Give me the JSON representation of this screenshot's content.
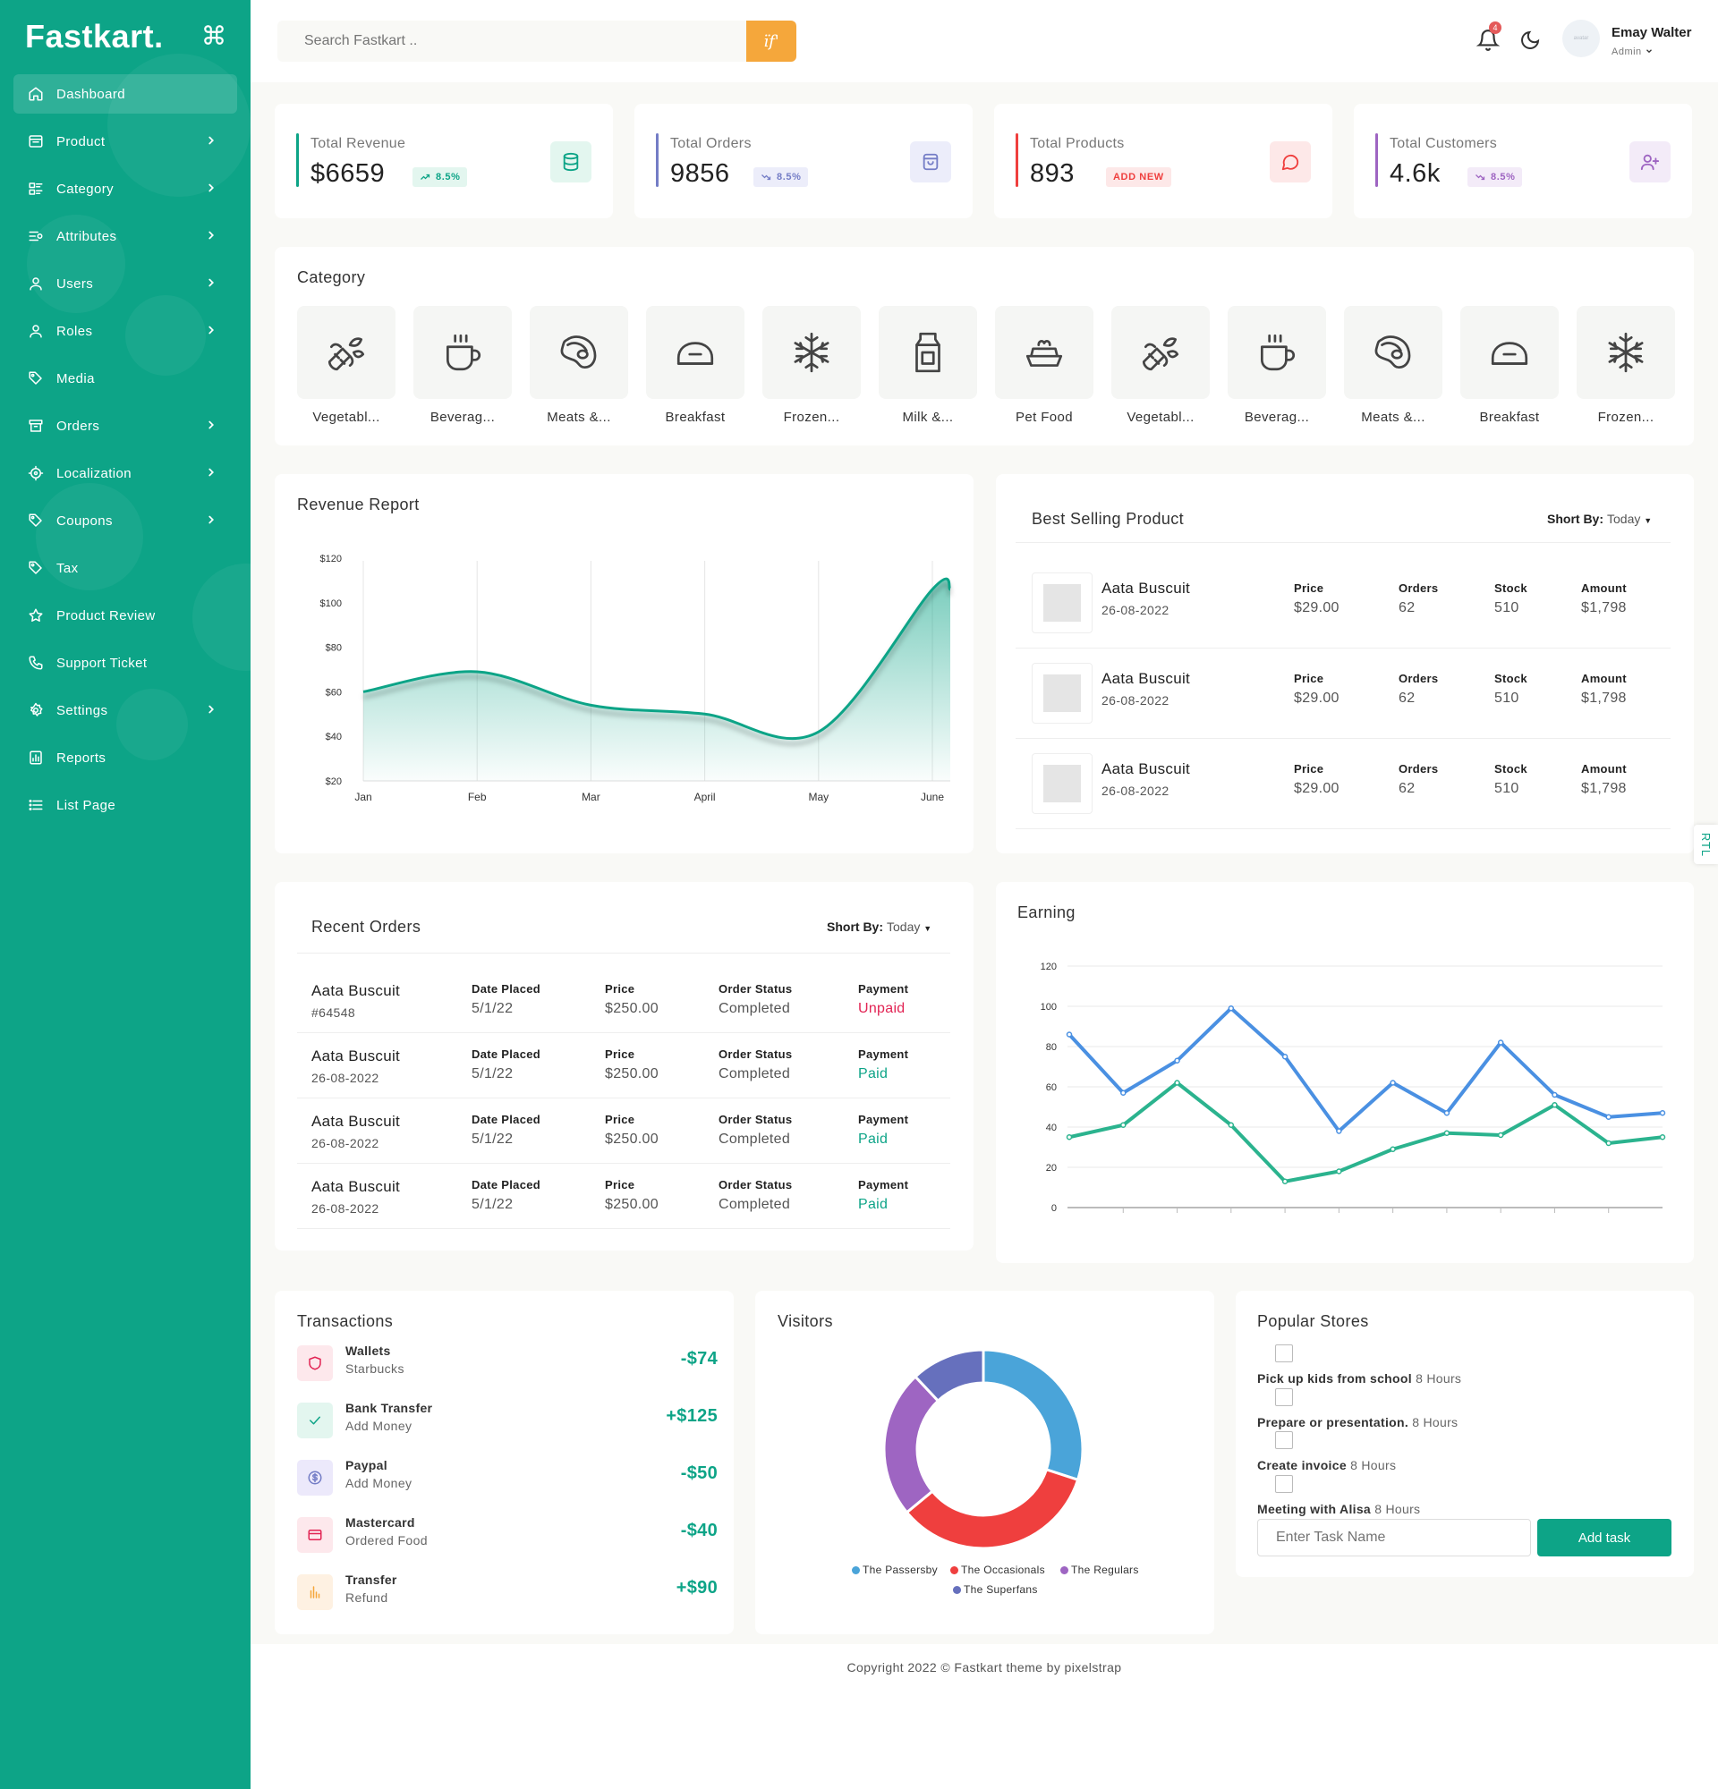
{
  "brand": "Fastkart.",
  "sidebar": {
    "items": [
      {
        "label": "Dashboard",
        "icon": "home-icon",
        "has_children": false,
        "active": true
      },
      {
        "label": "Product",
        "icon": "box-icon",
        "has_children": true
      },
      {
        "label": "Category",
        "icon": "category-icon",
        "has_children": true
      },
      {
        "label": "Attributes",
        "icon": "sliders-icon",
        "has_children": true
      },
      {
        "label": "Users",
        "icon": "user-icon",
        "has_children": true
      },
      {
        "label": "Roles",
        "icon": "user-icon",
        "has_children": true
      },
      {
        "label": "Media",
        "icon": "tag-icon",
        "has_children": false
      },
      {
        "label": "Orders",
        "icon": "archive-icon",
        "has_children": true
      },
      {
        "label": "Localization",
        "icon": "focus-icon",
        "has_children": true
      },
      {
        "label": "Coupons",
        "icon": "tag-icon",
        "has_children": true
      },
      {
        "label": "Tax",
        "icon": "tag-icon",
        "has_children": false
      },
      {
        "label": "Product Review",
        "icon": "star-icon",
        "has_children": false
      },
      {
        "label": "Support Ticket",
        "icon": "phone-icon",
        "has_children": false
      },
      {
        "label": "Settings",
        "icon": "gear-icon",
        "has_children": true
      },
      {
        "label": "Reports",
        "icon": "chart-icon",
        "has_children": false
      },
      {
        "label": "List Page",
        "icon": "list-icon",
        "has_children": false
      }
    ]
  },
  "header": {
    "search_placeholder": "Search Fastkart ..",
    "search_button": "ïf'",
    "notification_count": "4",
    "avatar_text": "avatar",
    "user_name": "Emay Walter",
    "user_role": "Admin"
  },
  "stats": [
    {
      "label": "Total Revenue",
      "value": "$6659",
      "chip": "8.5%",
      "trend": "up",
      "accent": "#0da487",
      "icon": "database-icon"
    },
    {
      "label": "Total Orders",
      "value": "9856",
      "chip": "8.5%",
      "trend": "down",
      "accent": "#747dc6",
      "icon": "shopping-bag-icon"
    },
    {
      "label": "Total Products",
      "value": "893",
      "chip": "ADD NEW",
      "trend": "none",
      "accent": "#ef3f3e",
      "icon": "chat-icon"
    },
    {
      "label": "Total Customers",
      "value": "4.6k",
      "chip": "8.5%",
      "trend": "down",
      "accent": "#9e65c2",
      "icon": "user-plus-icon"
    }
  ],
  "category": {
    "title": "Category",
    "items": [
      {
        "label": "Vegetabl...",
        "icon": "vegetable-icon"
      },
      {
        "label": "Beverag...",
        "icon": "cup-icon"
      },
      {
        "label": "Meats &...",
        "icon": "steak-icon"
      },
      {
        "label": "Breakfast",
        "icon": "bread-icon"
      },
      {
        "label": "Frozen...",
        "icon": "snowflake-icon"
      },
      {
        "label": "Milk &...",
        "icon": "milk-icon"
      },
      {
        "label": "Pet Food",
        "icon": "pet-bowl-icon"
      },
      {
        "label": "Vegetabl...",
        "icon": "vegetable-icon"
      },
      {
        "label": "Beverag...",
        "icon": "cup-icon"
      },
      {
        "label": "Meats &...",
        "icon": "steak-icon"
      },
      {
        "label": "Breakfast",
        "icon": "bread-icon"
      },
      {
        "label": "Frozen...",
        "icon": "snowflake-icon"
      }
    ]
  },
  "revenue_report": {
    "title": "Revenue Report"
  },
  "best_selling": {
    "title": "Best Selling Product",
    "sort_label": "Short By:",
    "sort_value": "Today",
    "col_price": "Price",
    "col_orders": "Orders",
    "col_stock": "Stock",
    "col_amount": "Amount",
    "rows": [
      {
        "name": "Aata Buscuit",
        "date": "26-08-2022",
        "price": "$29.00",
        "orders": "62",
        "stock": "510",
        "amount": "$1,798"
      },
      {
        "name": "Aata Buscuit",
        "date": "26-08-2022",
        "price": "$29.00",
        "orders": "62",
        "stock": "510",
        "amount": "$1,798"
      },
      {
        "name": "Aata Buscuit",
        "date": "26-08-2022",
        "price": "$29.00",
        "orders": "62",
        "stock": "510",
        "amount": "$1,798"
      }
    ]
  },
  "recent_orders": {
    "title": "Recent Orders",
    "sort_label": "Short By:",
    "sort_value": "Today",
    "col_date": "Date Placed",
    "col_price": "Price",
    "col_status": "Order Status",
    "col_payment": "Payment",
    "rows": [
      {
        "name": "Aata Buscuit",
        "sub": "#64548",
        "date": "5/1/22",
        "price": "$250.00",
        "status": "Completed",
        "payment": "Unpaid",
        "payment_color": "#e22454"
      },
      {
        "name": "Aata Buscuit",
        "sub": "26-08-2022",
        "date": "5/1/22",
        "price": "$250.00",
        "status": "Completed",
        "payment": "Paid",
        "payment_color": "#0da487"
      },
      {
        "name": "Aata Buscuit",
        "sub": "26-08-2022",
        "date": "5/1/22",
        "price": "$250.00",
        "status": "Completed",
        "payment": "Paid",
        "payment_color": "#0da487"
      },
      {
        "name": "Aata Buscuit",
        "sub": "26-08-2022",
        "date": "5/1/22",
        "price": "$250.00",
        "status": "Completed",
        "payment": "Paid",
        "payment_color": "#0da487"
      }
    ]
  },
  "earning": {
    "title": "Earning"
  },
  "transactions": {
    "title": "Transactions",
    "rows": [
      {
        "name": "Wallets",
        "sub": "Starbucks",
        "amount": "-$74",
        "icon": "shield-icon",
        "bg": "#fde8ec",
        "fg": "#e22454"
      },
      {
        "name": "Bank Transfer",
        "sub": "Add Money",
        "amount": "+$125",
        "icon": "check-icon",
        "bg": "#e3f6ef",
        "fg": "#0da487"
      },
      {
        "name": "Paypal",
        "sub": "Add Money",
        "amount": "-$50",
        "icon": "dollar-circle-icon",
        "bg": "#ece9fb",
        "fg": "#747dc6"
      },
      {
        "name": "Mastercard",
        "sub": "Ordered Food",
        "amount": "-$40",
        "icon": "card-icon",
        "bg": "#fde8ec",
        "fg": "#e22454"
      },
      {
        "name": "Transfer",
        "sub": "Refund",
        "amount": "+$90",
        "icon": "bar-chart-icon",
        "bg": "#fef1e2",
        "fg": "#f5a73b"
      }
    ]
  },
  "visitors": {
    "title": "Visitors",
    "legend": [
      {
        "name": "The Passersby",
        "color": "#4aa4d9"
      },
      {
        "name": "The Occasionals",
        "color": "#ef3f3e"
      },
      {
        "name": "The Regulars",
        "color": "#9e65c2"
      },
      {
        "name": "The Superfans",
        "color": "#6670bd"
      }
    ]
  },
  "popular_stores": {
    "title": "Popular Stores",
    "tasks": [
      {
        "name": "Pick up kids from school",
        "time": "8 Hours"
      },
      {
        "name": "Prepare or presentation.",
        "time": "8 Hours"
      },
      {
        "name": "Create invoice",
        "time": "8 Hours"
      },
      {
        "name": "Meeting with Alisa",
        "time": "8 Hours"
      }
    ],
    "input_placeholder": "Enter Task Name",
    "button": "Add task"
  },
  "footer": "Copyright 2022 © Fastkart theme by pixelstrap",
  "rtl_label": "RTL",
  "chart_data": [
    {
      "type": "area",
      "categories": [
        "Jan",
        "Feb",
        "Mar",
        "April",
        "May",
        "June"
      ],
      "series": [
        {
          "values": [
            60,
            69,
            54,
            50,
            42,
            106
          ]
        }
      ],
      "ylim": [
        20,
        120
      ],
      "yticks": [
        "$20",
        "$40",
        "$60",
        "$80",
        "$100",
        "$120"
      ],
      "color": "#0da487"
    },
    {
      "type": "line",
      "x": [
        1,
        2,
        3,
        4,
        5,
        6,
        7,
        8,
        9,
        10,
        11,
        12
      ],
      "series": [
        {
          "values": [
            86,
            57,
            73,
            99,
            75,
            38,
            62,
            47,
            82,
            56,
            45,
            47
          ],
          "color": "#4a90e2"
        },
        {
          "values": [
            35,
            41,
            62,
            41,
            13,
            18,
            29,
            37,
            36,
            51,
            32,
            35
          ],
          "color": "#2bb38e"
        }
      ],
      "ylim": [
        0,
        120
      ],
      "yticks": [
        "0",
        "20",
        "40",
        "60",
        "80",
        "100",
        "120"
      ]
    },
    {
      "type": "pie",
      "categories": [
        "The Passersby",
        "The Occasionals",
        "The Regulars",
        "The Superfans"
      ],
      "values": [
        30,
        34,
        24,
        12
      ],
      "colors": [
        "#4aa4d9",
        "#ef3f3e",
        "#9e65c2",
        "#6670bd"
      ]
    }
  ]
}
